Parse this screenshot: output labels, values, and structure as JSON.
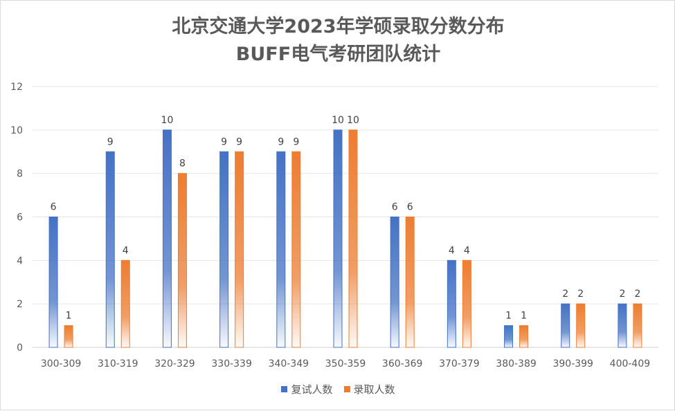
{
  "chart_data": {
    "type": "bar",
    "title_lines": [
      "北京交通大学2023年学硕录取分数分布",
      "BUFF电气考研团队统计"
    ],
    "categories": [
      "300-309",
      "310-319",
      "320-329",
      "330-339",
      "340-349",
      "350-359",
      "360-369",
      "370-379",
      "380-389",
      "390-399",
      "400-409"
    ],
    "series": [
      {
        "name": "复试人数",
        "values": [
          6,
          9,
          10,
          9,
          9,
          10,
          6,
          4,
          1,
          2,
          2
        ],
        "color": "#4472c4"
      },
      {
        "name": "录取人数",
        "values": [
          1,
          4,
          8,
          9,
          9,
          10,
          6,
          4,
          1,
          2,
          2
        ],
        "color": "#ed7d31"
      }
    ],
    "ylim": [
      0,
      12
    ],
    "yticks": [
      0,
      2,
      4,
      6,
      8,
      10,
      12
    ],
    "grid": true,
    "legend_position": "bottom"
  }
}
